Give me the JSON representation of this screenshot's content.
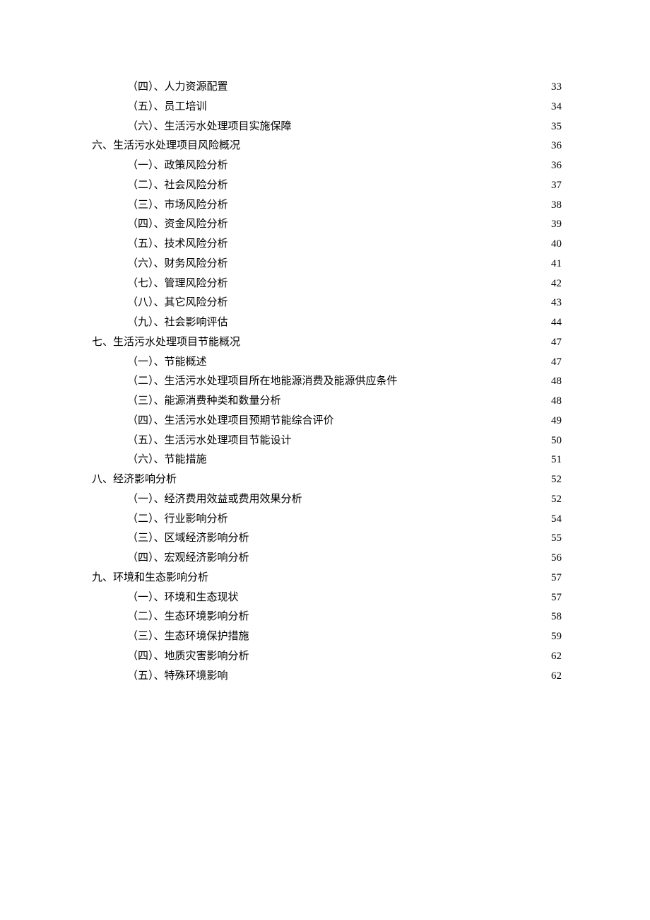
{
  "toc": {
    "entries": [
      {
        "level": 2,
        "label": "（四）、人力资源配置",
        "page": "33"
      },
      {
        "level": 2,
        "label": "（五）、员工培训",
        "page": "34"
      },
      {
        "level": 2,
        "label": "（六）、生活污水处理项目实施保障",
        "page": "35"
      },
      {
        "level": 1,
        "label": "六、生活污水处理项目风险概况",
        "page": "36"
      },
      {
        "level": 2,
        "label": "（一）、政策风险分析",
        "page": "36"
      },
      {
        "level": 2,
        "label": "（二）、社会风险分析",
        "page": "37"
      },
      {
        "level": 2,
        "label": "（三）、市场风险分析",
        "page": "38"
      },
      {
        "level": 2,
        "label": "（四）、资金风险分析",
        "page": "39"
      },
      {
        "level": 2,
        "label": "（五）、技术风险分析",
        "page": "40"
      },
      {
        "level": 2,
        "label": "（六）、财务风险分析",
        "page": "41"
      },
      {
        "level": 2,
        "label": "（七）、管理风险分析",
        "page": "42"
      },
      {
        "level": 2,
        "label": "（八）、其它风险分析",
        "page": "43"
      },
      {
        "level": 2,
        "label": "（九）、社会影响评估",
        "page": "44"
      },
      {
        "level": 1,
        "label": "七、生活污水处理项目节能概况",
        "page": "47"
      },
      {
        "level": 2,
        "label": "（一）、节能概述",
        "page": "47"
      },
      {
        "level": 2,
        "label": "（二）、生活污水处理项目所在地能源消费及能源供应条件 ",
        "page": "48"
      },
      {
        "level": 2,
        "label": "（三）、能源消费种类和数量分析 ",
        "page": "48"
      },
      {
        "level": 2,
        "label": "（四）、生活污水处理项目预期节能综合评价 ",
        "page": "49"
      },
      {
        "level": 2,
        "label": "（五）、生活污水处理项目节能设计",
        "page": "50"
      },
      {
        "level": 2,
        "label": "（六）、节能措施",
        "page": "51"
      },
      {
        "level": 1,
        "label": "八、经济影响分析",
        "page": "52"
      },
      {
        "level": 2,
        "label": "（一）、经济费用效益或费用效果分析",
        "page": "52"
      },
      {
        "level": 2,
        "label": "（二）、行业影响分析",
        "page": "54"
      },
      {
        "level": 2,
        "label": "（三）、区域经济影响分析 ",
        "page": "55"
      },
      {
        "level": 2,
        "label": "（四）、宏观经济影响分析 ",
        "page": "56"
      },
      {
        "level": 1,
        "label": "九、环境和生态影响分析 ",
        "page": "57"
      },
      {
        "level": 2,
        "label": "（一）、环境和生态现状 ",
        "page": "57"
      },
      {
        "level": 2,
        "label": "（二）、生态环境影响分析 ",
        "page": "58"
      },
      {
        "level": 2,
        "label": "（三）、生态环境保护措施 ",
        "page": "59"
      },
      {
        "level": 2,
        "label": "（四）、地质灾害影响分析 ",
        "page": "62"
      },
      {
        "level": 2,
        "label": "（五）、特殊环境影响",
        "page": "62"
      }
    ]
  }
}
